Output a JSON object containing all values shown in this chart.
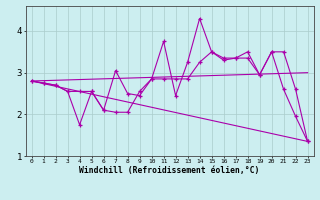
{
  "xlabel": "Windchill (Refroidissement éolien,°C)",
  "background_color": "#cceef0",
  "line_color": "#aa00aa",
  "grid_color": "#aacccc",
  "xlim": [
    -0.5,
    23.5
  ],
  "ylim": [
    1.0,
    4.6
  ],
  "yticks": [
    1,
    2,
    3,
    4
  ],
  "xticks": [
    0,
    1,
    2,
    3,
    4,
    5,
    6,
    7,
    8,
    9,
    10,
    11,
    12,
    13,
    14,
    15,
    16,
    17,
    18,
    19,
    20,
    21,
    22,
    23
  ],
  "line_zigzag1": {
    "x": [
      0,
      1,
      2,
      3,
      4,
      5,
      6,
      7,
      8,
      9,
      10,
      11,
      12,
      13,
      14,
      15,
      16,
      17,
      18,
      19,
      20,
      21,
      22,
      23
    ],
    "y": [
      2.8,
      2.75,
      2.7,
      2.55,
      1.75,
      2.55,
      2.1,
      3.05,
      2.5,
      2.45,
      2.85,
      3.75,
      2.45,
      3.25,
      4.3,
      3.5,
      3.3,
      3.35,
      3.5,
      2.95,
      3.5,
      2.6,
      1.95,
      1.35
    ]
  },
  "line_zigzag2": {
    "x": [
      0,
      1,
      2,
      3,
      4,
      5,
      6,
      7,
      8,
      9,
      10,
      11,
      12,
      13,
      14,
      15,
      16,
      17,
      18,
      19,
      20,
      21,
      22,
      23
    ],
    "y": [
      2.8,
      2.75,
      2.7,
      2.55,
      2.55,
      2.55,
      2.1,
      2.05,
      2.05,
      2.55,
      2.85,
      2.85,
      2.85,
      2.85,
      3.25,
      3.5,
      3.35,
      3.35,
      3.35,
      2.95,
      3.5,
      3.5,
      2.6,
      1.35
    ]
  },
  "line_diagonal_low": {
    "x": [
      0,
      23
    ],
    "y": [
      2.8,
      1.35
    ]
  },
  "line_diagonal_high": {
    "x": [
      0,
      23
    ],
    "y": [
      2.8,
      3.0
    ]
  }
}
